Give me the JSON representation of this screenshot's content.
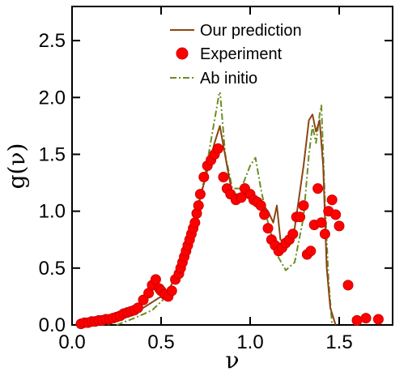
{
  "chart_data": {
    "type": "line",
    "xlabel": "ν",
    "ylabel": "g(ν)",
    "xlim": [
      0,
      1.8
    ],
    "ylim": [
      0,
      2.8
    ],
    "x_ticks": [
      0.0,
      0.5,
      1.0,
      1.5
    ],
    "x_tick_labels": [
      "0.0",
      "0.5",
      "1.0",
      "1.5"
    ],
    "y_ticks": [
      0.0,
      0.5,
      1.0,
      1.5,
      2.0,
      2.5
    ],
    "y_tick_labels": [
      "0.0",
      "0.5",
      "1.0",
      "1.5",
      "2.0",
      "2.5"
    ],
    "grid": false,
    "legend_position": "top-right",
    "series": [
      {
        "name": "Our prediction",
        "kind": "line",
        "color": "#8b4513",
        "x": [
          0.2,
          0.3,
          0.4,
          0.5,
          0.55,
          0.6,
          0.65,
          0.7,
          0.75,
          0.8,
          0.83,
          0.87,
          0.9,
          0.95,
          1.0,
          1.05,
          1.1,
          1.13,
          1.15,
          1.17,
          1.2,
          1.25,
          1.3,
          1.33,
          1.35,
          1.37,
          1.39,
          1.41,
          1.43,
          1.45,
          1.48
        ],
        "y": [
          0.0,
          0.08,
          0.15,
          0.25,
          0.33,
          0.48,
          0.7,
          1.0,
          1.3,
          1.6,
          1.75,
          1.4,
          1.15,
          1.15,
          1.15,
          1.1,
          1.0,
          0.9,
          1.05,
          0.75,
          0.72,
          0.85,
          1.4,
          1.8,
          1.85,
          1.7,
          1.8,
          1.4,
          0.5,
          0.15,
          0.0
        ]
      },
      {
        "name": "Experiment",
        "kind": "scatter",
        "color": "#ff0000",
        "x": [
          0.05,
          0.07,
          0.09,
          0.11,
          0.13,
          0.15,
          0.17,
          0.19,
          0.21,
          0.23,
          0.25,
          0.27,
          0.29,
          0.31,
          0.33,
          0.35,
          0.37,
          0.4,
          0.43,
          0.45,
          0.47,
          0.49,
          0.5,
          0.52,
          0.54,
          0.56,
          0.58,
          0.6,
          0.61,
          0.62,
          0.63,
          0.64,
          0.65,
          0.66,
          0.67,
          0.68,
          0.69,
          0.7,
          0.71,
          0.72,
          0.74,
          0.76,
          0.78,
          0.8,
          0.82,
          0.85,
          0.87,
          0.89,
          0.92,
          0.95,
          0.97,
          1.0,
          1.02,
          1.04,
          1.06,
          1.08,
          1.1,
          1.12,
          1.14,
          1.16,
          1.18,
          1.2,
          1.22,
          1.24,
          1.26,
          1.28,
          1.3,
          1.32,
          1.34,
          1.36,
          1.38,
          1.4,
          1.42,
          1.44,
          1.46,
          1.48,
          1.5,
          1.55,
          1.6,
          1.65,
          1.72
        ],
        "y": [
          0.01,
          0.02,
          0.02,
          0.03,
          0.03,
          0.04,
          0.04,
          0.05,
          0.05,
          0.06,
          0.07,
          0.08,
          0.1,
          0.11,
          0.12,
          0.13,
          0.15,
          0.22,
          0.28,
          0.35,
          0.4,
          0.32,
          0.3,
          0.27,
          0.25,
          0.3,
          0.4,
          0.45,
          0.5,
          0.55,
          0.6,
          0.65,
          0.7,
          0.75,
          0.8,
          0.85,
          0.9,
          0.98,
          1.05,
          1.15,
          1.3,
          1.4,
          1.45,
          1.5,
          1.55,
          1.3,
          1.2,
          1.15,
          1.1,
          1.12,
          1.2,
          1.15,
          1.1,
          1.08,
          1.05,
          0.97,
          0.85,
          0.75,
          0.7,
          0.65,
          0.68,
          0.72,
          0.75,
          0.8,
          0.95,
          0.95,
          1.05,
          0.62,
          0.65,
          0.88,
          1.2,
          0.9,
          0.8,
          1.0,
          1.1,
          0.97,
          0.87,
          0.35,
          0.04,
          0.06,
          0.05
        ]
      },
      {
        "name": "Ab initio",
        "kind": "line",
        "dash": "dash-dot",
        "color": "#6b8e23",
        "x": [
          0.25,
          0.35,
          0.45,
          0.55,
          0.6,
          0.65,
          0.7,
          0.75,
          0.8,
          0.83,
          0.86,
          0.9,
          0.95,
          1.0,
          1.03,
          1.06,
          1.1,
          1.15,
          1.2,
          1.25,
          1.3,
          1.33,
          1.35,
          1.37,
          1.39,
          1.4,
          1.42,
          1.44,
          1.46
        ],
        "y": [
          0.0,
          0.06,
          0.13,
          0.28,
          0.4,
          0.6,
          0.95,
          1.35,
          1.8,
          2.07,
          1.5,
          1.2,
          1.2,
          1.4,
          1.47,
          1.2,
          0.9,
          0.62,
          0.48,
          0.55,
          0.95,
          1.5,
          1.75,
          1.6,
          1.85,
          1.93,
          1.1,
          0.4,
          0.0
        ]
      }
    ]
  }
}
